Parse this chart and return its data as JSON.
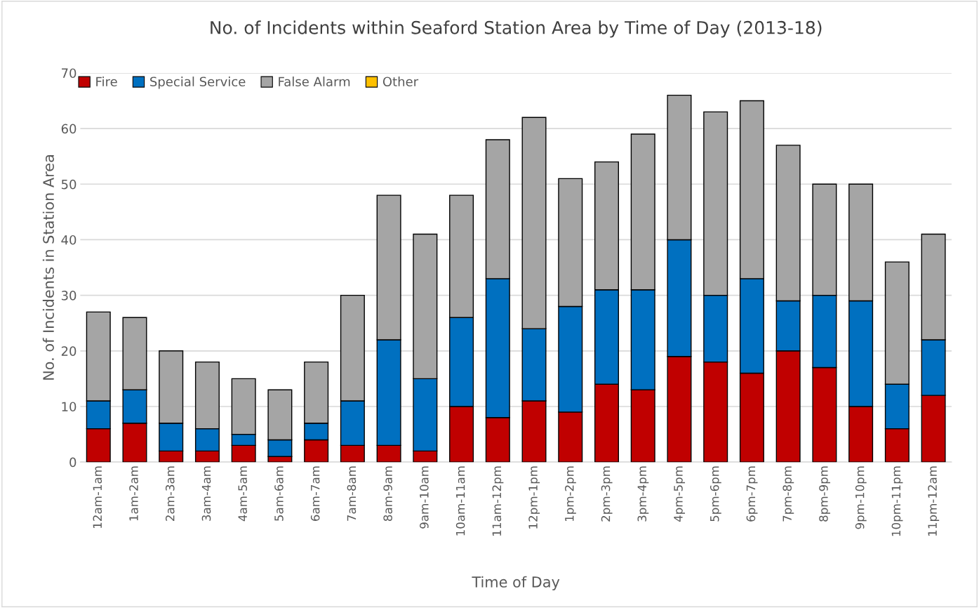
{
  "chart_data": {
    "type": "bar",
    "stacked": true,
    "title": "No. of Incidents within Seaford Station Area by Time of Day (2013-18)",
    "xlabel": "Time of Day",
    "ylabel": "No. of Incidents in Station Area",
    "categories": [
      "12am-1am",
      "1am-2am",
      "2am-3am",
      "3am-4am",
      "4am-5am",
      "5am-6am",
      "6am-7am",
      "7am-8am",
      "8am-9am",
      "9am-10am",
      "10am-11am",
      "11am-12pm",
      "12pm-1pm",
      "1pm-2pm",
      "2pm-3pm",
      "3pm-4pm",
      "4pm-5pm",
      "5pm-6pm",
      "6pm-7pm",
      "7pm-8pm",
      "8pm-9pm",
      "9pm-10pm",
      "10pm-11pm",
      "11pm-12am"
    ],
    "series": [
      {
        "name": "Fire",
        "color": "#c00000",
        "values": [
          6,
          7,
          2,
          2,
          3,
          1,
          4,
          3,
          3,
          2,
          10,
          8,
          11,
          9,
          14,
          13,
          19,
          18,
          16,
          20,
          17,
          10,
          6,
          12
        ]
      },
      {
        "name": "Special Service",
        "color": "#0070c0",
        "values": [
          5,
          6,
          5,
          4,
          2,
          3,
          3,
          8,
          19,
          13,
          16,
          25,
          13,
          19,
          17,
          18,
          21,
          12,
          17,
          9,
          13,
          19,
          8,
          10
        ]
      },
      {
        "name": "False Alarm",
        "color": "#a5a5a5",
        "values": [
          16,
          13,
          13,
          12,
          10,
          9,
          11,
          19,
          26,
          26,
          22,
          25,
          38,
          23,
          23,
          28,
          26,
          33,
          32,
          28,
          20,
          21,
          22,
          19
        ]
      },
      {
        "name": "Other",
        "color": "#ffc000",
        "values": [
          0,
          0,
          0,
          0,
          0,
          0,
          0,
          0,
          0,
          0,
          0,
          0,
          0,
          0,
          0,
          0,
          0,
          0,
          0,
          0,
          0,
          0,
          0,
          0
        ]
      }
    ],
    "ylim": [
      0,
      70
    ],
    "yticks": [
      0,
      10,
      20,
      30,
      40,
      50,
      60,
      70
    ],
    "grid": "y",
    "legend": "top left"
  }
}
